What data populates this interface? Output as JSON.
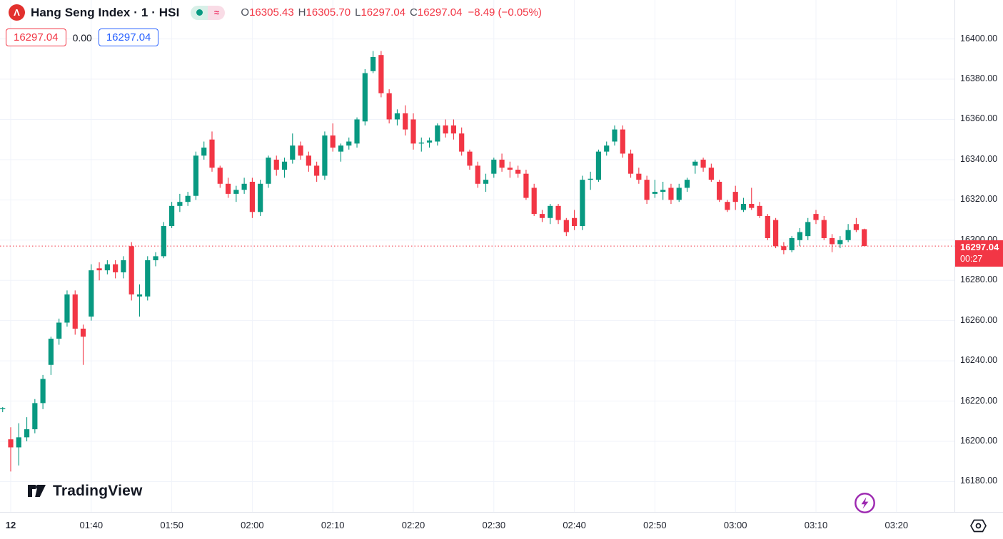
{
  "header": {
    "symbol_logo_glyph": "Λ",
    "symbol_title": "Hang Seng Index · 1 · HSI",
    "market_status": {
      "approx_icon": "≈"
    },
    "ohlc": {
      "open_label": "O",
      "open": "16305.43",
      "high_label": "H",
      "high": "16305.70",
      "low_label": "L",
      "low": "16297.04",
      "close_label": "C",
      "close": "16297.04",
      "change": "−8.49 (−0.05%)"
    },
    "quote_badges": {
      "sell": "16297.04",
      "spread": "0.00",
      "buy": "16297.04"
    }
  },
  "price_label": {
    "price": "16297.04",
    "countdown": "00:27"
  },
  "footer": {
    "logo_text": "TradingView"
  },
  "colors": {
    "up": "#089981",
    "down": "#F23645",
    "accent_blue": "#2962FF",
    "text": "#131722",
    "grid": "#F0F3FA",
    "axis_border": "#E0E3EB",
    "price_line": "#F23645",
    "flash_purple": "#9C27B0",
    "symbol_red": "#E2302D"
  },
  "chart_data": {
    "type": "candlestick",
    "title": "Hang Seng Index · 1 · HSI",
    "symbol": "HSI",
    "interval_minutes": 1,
    "last_price": 16297.04,
    "price_axis": {
      "ticks": [
        16400,
        16380,
        16360,
        16340,
        16320,
        16300,
        16280,
        16260,
        16240,
        16220,
        16200,
        16180
      ],
      "visible_range": [
        16165,
        16420
      ]
    },
    "time_axis": {
      "ticks": [
        {
          "m": 0,
          "label": "12",
          "bold": true
        },
        {
          "m": 10,
          "label": "01:40"
        },
        {
          "m": 20,
          "label": "01:50"
        },
        {
          "m": 30,
          "label": "02:00"
        },
        {
          "m": 40,
          "label": "02:10"
        },
        {
          "m": 50,
          "label": "02:20"
        },
        {
          "m": 60,
          "label": "02:30"
        },
        {
          "m": 70,
          "label": "02:40"
        },
        {
          "m": 80,
          "label": "02:50"
        },
        {
          "m": 90,
          "label": "03:00"
        },
        {
          "m": 100,
          "label": "03:10"
        },
        {
          "m": 110,
          "label": "03:20"
        }
      ]
    },
    "candles": [
      [
        "01:29",
        16216,
        16217,
        16214.5,
        16216.5
      ],
      [
        "01:30",
        16201,
        16207,
        16185,
        16197
      ],
      [
        "01:31",
        16197,
        16209,
        16188,
        16202
      ],
      [
        "01:32",
        16202,
        16212,
        16200,
        16206
      ],
      [
        "01:33",
        16206,
        16221,
        16204,
        16219
      ],
      [
        "01:34",
        16219,
        16233,
        16216,
        16231
      ],
      [
        "01:35",
        16238,
        16252,
        16233,
        16251
      ],
      [
        "01:36",
        16251,
        16261,
        16248,
        16259
      ],
      [
        "01:37",
        16259,
        16275,
        16257,
        16273
      ],
      [
        "01:38",
        16273,
        16275,
        16253,
        16256
      ],
      [
        "01:39",
        16256,
        16258,
        16238,
        16252
      ],
      [
        "01:40",
        16262,
        16288,
        16260,
        16285
      ],
      [
        "01:41",
        16286,
        16289,
        16280,
        16285
      ],
      [
        "01:42",
        16285,
        16290,
        16283,
        16288
      ],
      [
        "01:43",
        16288,
        16290,
        16281,
        16284
      ],
      [
        "01:44",
        16284,
        16292,
        16281,
        16290
      ],
      [
        "01:45",
        16297,
        16299,
        16270,
        16273
      ],
      [
        "01:46",
        16272,
        16278,
        16262,
        16273
      ],
      [
        "01:47",
        16272,
        16292,
        16270,
        16290
      ],
      [
        "01:48",
        16290,
        16294,
        16287,
        16292
      ],
      [
        "01:49",
        16292,
        16309,
        16291,
        16307
      ],
      [
        "01:50",
        16307,
        16319,
        16306,
        16317
      ],
      [
        "01:51",
        16317,
        16323,
        16314,
        16319
      ],
      [
        "01:52",
        16319,
        16324,
        16317,
        16322
      ],
      [
        "01:53",
        16322,
        16344,
        16320,
        16342
      ],
      [
        "01:54",
        16342,
        16349,
        16340,
        16346
      ],
      [
        "01:55",
        16350,
        16354,
        16334,
        16336
      ],
      [
        "01:56",
        16336,
        16337,
        16326,
        16328
      ],
      [
        "01:57",
        16328,
        16331,
        16321,
        16323
      ],
      [
        "01:58",
        16323,
        16327,
        16319,
        16325
      ],
      [
        "01:59",
        16325,
        16331,
        16323,
        16328
      ],
      [
        "02:00",
        16329,
        16331,
        16311,
        16314
      ],
      [
        "02:01",
        16314,
        16330,
        16312,
        16328
      ],
      [
        "02:02",
        16328,
        16342,
        16326,
        16341
      ],
      [
        "02:03",
        16340,
        16342,
        16332,
        16335
      ],
      [
        "02:04",
        16335,
        16341,
        16331,
        16339
      ],
      [
        "02:05",
        16340,
        16353,
        16338,
        16347
      ],
      [
        "02:06",
        16347,
        16349,
        16340,
        16342
      ],
      [
        "02:07",
        16342,
        16344,
        16334,
        16337
      ],
      [
        "02:08",
        16337,
        16339,
        16329,
        16332
      ],
      [
        "02:09",
        16332,
        16354,
        16330,
        16352
      ],
      [
        "02:10",
        16352,
        16358,
        16344,
        16346
      ],
      [
        "02:11",
        16344,
        16348,
        16339,
        16347
      ],
      [
        "02:12",
        16347,
        16351,
        16345,
        16349
      ],
      [
        "02:13",
        16348,
        16361,
        16346,
        16360
      ],
      [
        "02:14",
        16359,
        16385,
        16357,
        16383
      ],
      [
        "02:15",
        16384,
        16394,
        16383,
        16391
      ],
      [
        "02:16",
        16392,
        16394,
        16371,
        16373
      ],
      [
        "02:17",
        16373,
        16375,
        16358,
        16360
      ],
      [
        "02:18",
        16360,
        16365,
        16357,
        16363
      ],
      [
        "02:19",
        16363,
        16367,
        16352,
        16355
      ],
      [
        "02:20",
        16360,
        16363,
        16345,
        16348
      ],
      [
        "02:21",
        16348,
        16351,
        16344,
        16348.5
      ],
      [
        "02:22",
        16348.5,
        16351,
        16346,
        16349.5
      ],
      [
        "02:23",
        16349,
        16358,
        16347,
        16357
      ],
      [
        "02:24",
        16357,
        16360,
        16351,
        16353
      ],
      [
        "02:25",
        16357,
        16360,
        16350,
        16353
      ],
      [
        "02:26",
        16353,
        16356,
        16342,
        16344
      ],
      [
        "02:27",
        16344,
        16345,
        16335,
        16337
      ],
      [
        "02:28",
        16337,
        16339,
        16326,
        16328
      ],
      [
        "02:29",
        16328,
        16333,
        16324,
        16330
      ],
      [
        "02:30",
        16333,
        16341,
        16331,
        16340
      ],
      [
        "02:31",
        16340,
        16343,
        16334,
        16336
      ],
      [
        "02:32",
        16336,
        16339,
        16331,
        16335
      ],
      [
        "02:33",
        16335,
        16337,
        16331,
        16333
      ],
      [
        "02:34",
        16333,
        16335,
        16320,
        16321
      ],
      [
        "02:35",
        16326,
        16328,
        16312,
        16313
      ],
      [
        "02:36",
        16313,
        16315,
        16309,
        16311
      ],
      [
        "02:37",
        16311,
        16318,
        16308,
        16317
      ],
      [
        "02:38",
        16317,
        16318,
        16308,
        16310
      ],
      [
        "02:39",
        16310,
        16311,
        16302,
        16304
      ],
      [
        "02:40",
        16311,
        16315,
        16305,
        16307
      ],
      [
        "02:41",
        16307,
        16332,
        16305,
        16330
      ],
      [
        "02:42",
        16330,
        16334,
        16325,
        16330.5
      ],
      [
        "02:43",
        16330,
        16345,
        16329,
        16344
      ],
      [
        "02:44",
        16344,
        16349,
        16342,
        16347
      ],
      [
        "02:45",
        16349,
        16357,
        16347,
        16355
      ],
      [
        "02:46",
        16355,
        16357,
        16341,
        16343
      ],
      [
        "02:47",
        16343,
        16345,
        16331,
        16333
      ],
      [
        "02:48",
        16333,
        16336,
        16328,
        16330
      ],
      [
        "02:49",
        16330,
        16332,
        16318,
        16320
      ],
      [
        "02:50",
        16323,
        16330,
        16321,
        16324
      ],
      [
        "02:51",
        16324,
        16329,
        16320,
        16325
      ],
      [
        "02:52",
        16326,
        16328,
        16318,
        16320
      ],
      [
        "02:53",
        16320,
        16328,
        16319,
        16326
      ],
      [
        "02:54",
        16326,
        16331,
        16324,
        16330
      ],
      [
        "02:55",
        16337,
        16340,
        16333,
        16339
      ],
      [
        "02:56",
        16340,
        16341,
        16334,
        16336
      ],
      [
        "02:57",
        16336,
        16338,
        16329,
        16330
      ],
      [
        "02:58",
        16329,
        16330,
        16319,
        16320
      ],
      [
        "02:59",
        16319,
        16320,
        16314,
        16315
      ],
      [
        "03:00",
        16324,
        16327,
        16315,
        16319
      ],
      [
        "03:01",
        16315,
        16321,
        16314,
        16318
      ],
      [
        "03:02",
        16318,
        16326,
        16315,
        16316
      ],
      [
        "03:03",
        16317,
        16319,
        16311,
        16312
      ],
      [
        "03:04",
        16312,
        16313,
        16300,
        16301
      ],
      [
        "03:05",
        16310,
        16311,
        16296,
        16297
      ],
      [
        "03:06",
        16297,
        16299,
        16293,
        16295
      ],
      [
        "03:07",
        16295,
        16302,
        16294,
        16301
      ],
      [
        "03:08",
        16300,
        16306,
        16297,
        16304
      ],
      [
        "03:09",
        16302,
        16311,
        16300,
        16309
      ],
      [
        "03:10",
        16313,
        16315,
        16308,
        16310
      ],
      [
        "03:11",
        16310,
        16312,
        16300,
        16301
      ],
      [
        "03:12",
        16301,
        16303,
        16294,
        16298
      ],
      [
        "03:13",
        16298,
        16302,
        16296,
        16300
      ],
      [
        "03:14",
        16300,
        16308,
        16299,
        16305
      ],
      [
        "03:15",
        16308,
        16311,
        16304,
        16305
      ],
      [
        "03:16",
        16305.43,
        16305.7,
        16297.04,
        16297.04
      ]
    ]
  }
}
